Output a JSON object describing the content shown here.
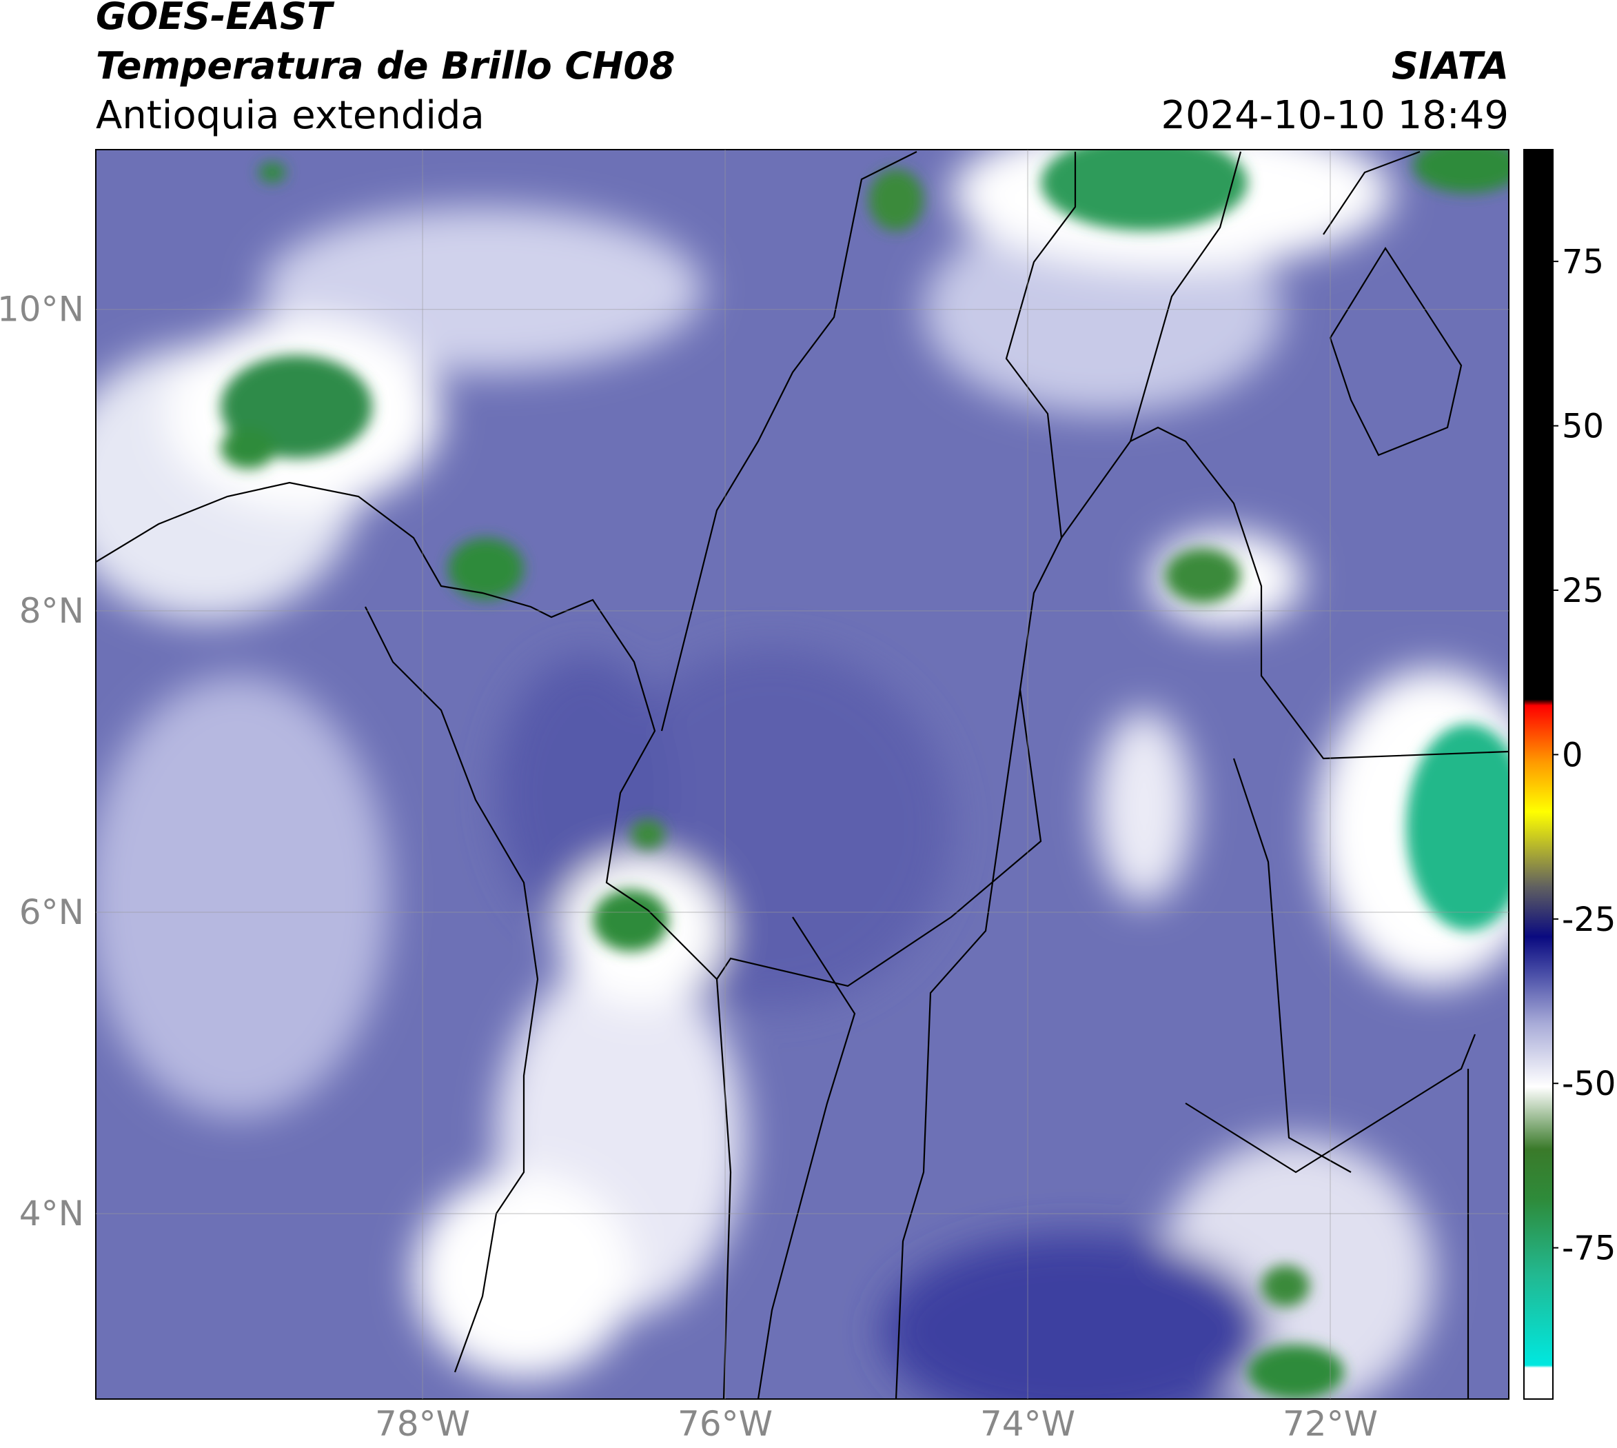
{
  "header": {
    "title": "GOES-EAST",
    "subtitle": "Temperatura de Brillo CH08",
    "region": "Antioquia extendida",
    "source": "SIATA",
    "datetime": "2024-10-10 18:49"
  },
  "map": {
    "xlim": [
      -80.16,
      -70.82
    ],
    "ylim": [
      2.77,
      11.06
    ],
    "xticks": [
      {
        "value": -78,
        "label": "78°W"
      },
      {
        "value": -76,
        "label": "76°W"
      },
      {
        "value": -74,
        "label": "74°W"
      },
      {
        "value": -72,
        "label": "72°W"
      }
    ],
    "yticks": [
      {
        "value": 4,
        "label": "4°N"
      },
      {
        "value": 6,
        "label": "6°N"
      },
      {
        "value": 8,
        "label": "8°N"
      },
      {
        "value": 10,
        "label": "10°N"
      }
    ],
    "grid": true
  },
  "colorbar": {
    "lim": [
      -98,
      92
    ],
    "ticks": [
      -75,
      -50,
      -25,
      0,
      25,
      50,
      75
    ]
  }
}
